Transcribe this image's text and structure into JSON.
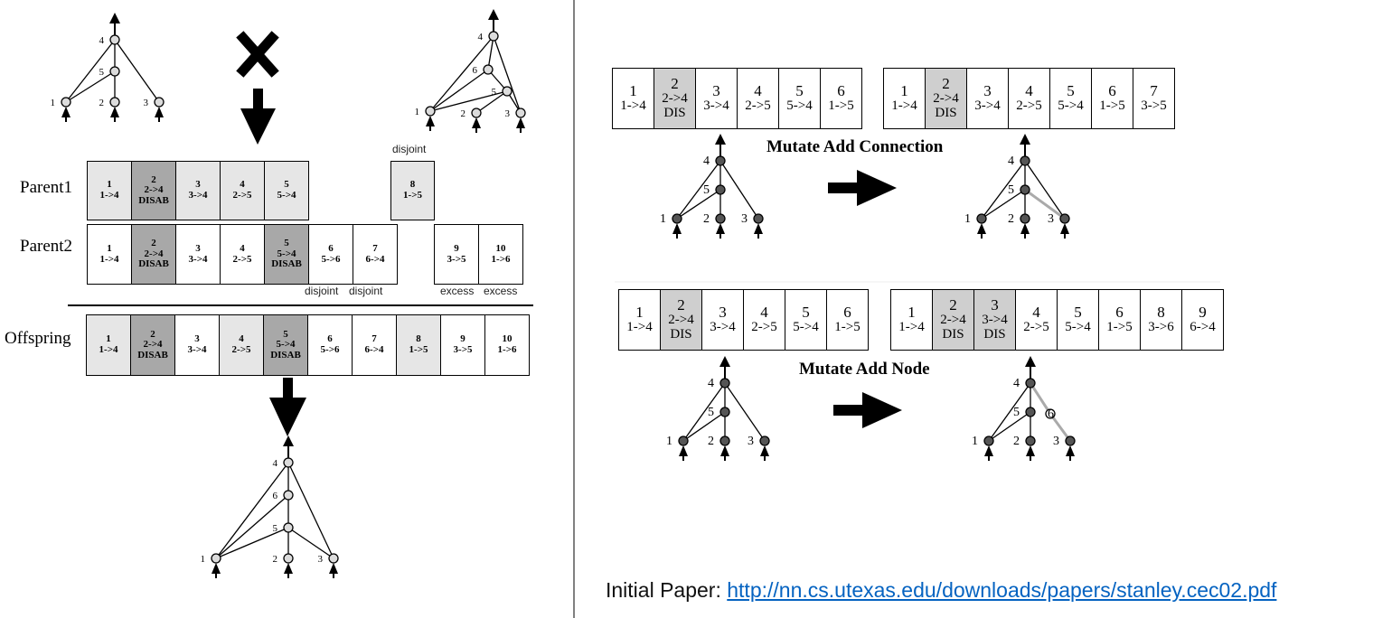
{
  "crossover": {
    "parent1_label": "Parent1",
    "parent2_label": "Parent2",
    "offspring_label": "Offspring",
    "parent1_genes": [
      {
        "id": "1",
        "conn": "1->4",
        "status": "",
        "shade": "light"
      },
      {
        "id": "2",
        "conn": "2->4",
        "status": "DISAB",
        "shade": "dark"
      },
      {
        "id": "3",
        "conn": "3->4",
        "status": "",
        "shade": "light"
      },
      {
        "id": "4",
        "conn": "2->5",
        "status": "",
        "shade": "light"
      },
      {
        "id": "5",
        "conn": "5->4",
        "status": "",
        "shade": "light"
      }
    ],
    "parent1_disjoint_gene": {
      "id": "8",
      "conn": "1->5",
      "status": "",
      "shade": "light"
    },
    "parent1_disjoint_label": "disjoint",
    "parent2_genes": [
      {
        "id": "1",
        "conn": "1->4",
        "status": "",
        "shade": "none"
      },
      {
        "id": "2",
        "conn": "2->4",
        "status": "DISAB",
        "shade": "dark"
      },
      {
        "id": "3",
        "conn": "3->4",
        "status": "",
        "shade": "none"
      },
      {
        "id": "4",
        "conn": "2->5",
        "status": "",
        "shade": "none"
      },
      {
        "id": "5",
        "conn": "5->4",
        "status": "DISAB",
        "shade": "dark"
      },
      {
        "id": "6",
        "conn": "5->6",
        "status": "",
        "shade": "none"
      },
      {
        "id": "7",
        "conn": "6->4",
        "status": "",
        "shade": "none"
      }
    ],
    "parent2_excess_genes": [
      {
        "id": "9",
        "conn": "3->5",
        "status": "",
        "shade": "none"
      },
      {
        "id": "10",
        "conn": "1->6",
        "status": "",
        "shade": "none"
      }
    ],
    "parent2_labels": [
      "disjoint",
      "disjoint",
      "excess",
      "excess"
    ],
    "offspring_genes": [
      {
        "id": "1",
        "conn": "1->4",
        "status": "",
        "shade": "light"
      },
      {
        "id": "2",
        "conn": "2->4",
        "status": "DISAB",
        "shade": "dark"
      },
      {
        "id": "3",
        "conn": "3->4",
        "status": "",
        "shade": "none"
      },
      {
        "id": "4",
        "conn": "2->5",
        "status": "",
        "shade": "light"
      },
      {
        "id": "5",
        "conn": "5->4",
        "status": "DISAB",
        "shade": "dark"
      },
      {
        "id": "6",
        "conn": "5->6",
        "status": "",
        "shade": "none"
      },
      {
        "id": "7",
        "conn": "6->4",
        "status": "",
        "shade": "none"
      },
      {
        "id": "8",
        "conn": "1->5",
        "status": "",
        "shade": "light"
      },
      {
        "id": "9",
        "conn": "3->5",
        "status": "",
        "shade": "none"
      },
      {
        "id": "10",
        "conn": "1->6",
        "status": "",
        "shade": "none"
      }
    ],
    "node_labels": {
      "n1": "1",
      "n2": "2",
      "n3": "3",
      "n4": "4",
      "n5": "5",
      "n6": "6"
    }
  },
  "mutate_connection": {
    "title": "Mutate Add Connection",
    "before_genes": [
      {
        "id": "1",
        "conn": "1->4",
        "status": "",
        "shade": "none"
      },
      {
        "id": "2",
        "conn": "2->4",
        "status": "DIS",
        "shade": "mid"
      },
      {
        "id": "3",
        "conn": "3->4",
        "status": "",
        "shade": "none"
      },
      {
        "id": "4",
        "conn": "2->5",
        "status": "",
        "shade": "none"
      },
      {
        "id": "5",
        "conn": "5->4",
        "status": "",
        "shade": "none"
      },
      {
        "id": "6",
        "conn": "1->5",
        "status": "",
        "shade": "none"
      }
    ],
    "after_genes": [
      {
        "id": "1",
        "conn": "1->4",
        "status": "",
        "shade": "none"
      },
      {
        "id": "2",
        "conn": "2->4",
        "status": "DIS",
        "shade": "mid"
      },
      {
        "id": "3",
        "conn": "3->4",
        "status": "",
        "shade": "none"
      },
      {
        "id": "4",
        "conn": "2->5",
        "status": "",
        "shade": "none"
      },
      {
        "id": "5",
        "conn": "5->4",
        "status": "",
        "shade": "none"
      },
      {
        "id": "6",
        "conn": "1->5",
        "status": "",
        "shade": "none"
      },
      {
        "id": "7",
        "conn": "3->5",
        "status": "",
        "shade": "none"
      }
    ]
  },
  "mutate_node": {
    "title": "Mutate Add Node",
    "before_genes": [
      {
        "id": "1",
        "conn": "1->4",
        "status": "",
        "shade": "none"
      },
      {
        "id": "2",
        "conn": "2->4",
        "status": "DIS",
        "shade": "mid"
      },
      {
        "id": "3",
        "conn": "3->4",
        "status": "",
        "shade": "none"
      },
      {
        "id": "4",
        "conn": "2->5",
        "status": "",
        "shade": "none"
      },
      {
        "id": "5",
        "conn": "5->4",
        "status": "",
        "shade": "none"
      },
      {
        "id": "6",
        "conn": "1->5",
        "status": "",
        "shade": "none"
      }
    ],
    "after_genes": [
      {
        "id": "1",
        "conn": "1->4",
        "status": "",
        "shade": "none"
      },
      {
        "id": "2",
        "conn": "2->4",
        "status": "DIS",
        "shade": "mid"
      },
      {
        "id": "3",
        "conn": "3->4",
        "status": "DIS",
        "shade": "mid"
      },
      {
        "id": "4",
        "conn": "2->5",
        "status": "",
        "shade": "none"
      },
      {
        "id": "5",
        "conn": "5->4",
        "status": "",
        "shade": "none"
      },
      {
        "id": "6",
        "conn": "1->5",
        "status": "",
        "shade": "none"
      },
      {
        "id": "8",
        "conn": "3->6",
        "status": "",
        "shade": "none"
      },
      {
        "id": "9",
        "conn": "6->4",
        "status": "",
        "shade": "none"
      }
    ]
  },
  "footer": {
    "label": "Initial Paper: ",
    "link_text": "http://nn.cs.utexas.edu/downloads/papers/stanley.cec02.pdf"
  },
  "colors": {
    "light": "#e6e6e6",
    "dark": "#a8a8a8",
    "mid": "#cfcfcf",
    "link": "#0563c1"
  }
}
